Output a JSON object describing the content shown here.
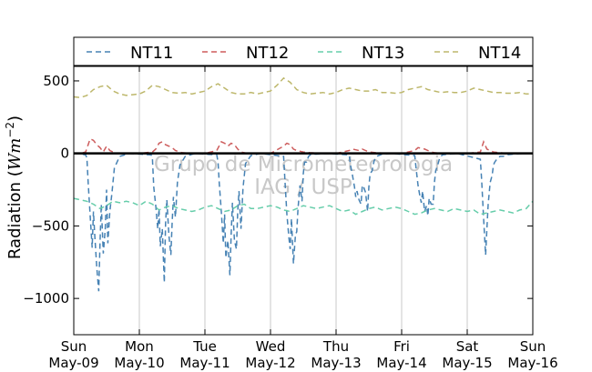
{
  "chart_data": {
    "type": "line",
    "ylabel": "Radiation (Wm⁻²)",
    "ylabel_parts": {
      "prefix": "Radiation (",
      "unit": "Wm",
      "exponent": "−2",
      "suffix": ")"
    },
    "xlabel": "",
    "ylim": [
      -1250,
      600
    ],
    "xlim": [
      0,
      7
    ],
    "y_ticks": [
      500,
      0,
      -500,
      -1000
    ],
    "y_tick_labels": [
      "500",
      "0",
      "−500",
      "−1000"
    ],
    "x_ticks": [
      0,
      1,
      2,
      3,
      4,
      5,
      6,
      7
    ],
    "x_tick_labels": [
      [
        "Sun",
        "May-09"
      ],
      [
        "Mon",
        "May-10"
      ],
      [
        "Tue",
        "May-11"
      ],
      [
        "Wed",
        "May-12"
      ],
      [
        "Thu",
        "May-13"
      ],
      [
        "Fri",
        "May-14"
      ],
      [
        "Sat",
        "May-15"
      ],
      [
        "Sun",
        "May-16"
      ]
    ],
    "grid": "vertical lines at day boundaries",
    "legend_position": "top, outside plot, single row",
    "zero_line": true,
    "watermark": [
      "Grupo de Micrometeorologia",
      "IAG / USP"
    ],
    "series": [
      {
        "name": "NT11",
        "color": "#4682b4",
        "style": "dashed",
        "x": [
          0.0,
          0.08,
          0.18,
          0.2,
          0.22,
          0.25,
          0.28,
          0.3,
          0.32,
          0.35,
          0.38,
          0.4,
          0.42,
          0.45,
          0.48,
          0.5,
          0.52,
          0.55,
          0.58,
          0.62,
          0.7,
          0.85,
          1.18,
          1.2,
          1.22,
          1.25,
          1.28,
          1.3,
          1.32,
          1.35,
          1.38,
          1.4,
          1.42,
          1.45,
          1.48,
          1.5,
          1.52,
          1.55,
          1.58,
          1.62,
          1.7,
          1.85,
          2.18,
          2.2,
          2.22,
          2.25,
          2.28,
          2.3,
          2.32,
          2.35,
          2.38,
          2.4,
          2.42,
          2.45,
          2.48,
          2.5,
          2.52,
          2.55,
          2.58,
          2.62,
          2.7,
          2.85,
          3.2,
          3.22,
          3.25,
          3.28,
          3.3,
          3.32,
          3.35,
          3.38,
          3.4,
          3.42,
          3.45,
          3.48,
          3.5,
          3.52,
          3.55,
          3.58,
          3.62,
          3.7,
          3.85,
          4.2,
          4.22,
          4.25,
          4.28,
          4.3,
          4.32,
          4.35,
          4.38,
          4.4,
          4.42,
          4.45,
          4.48,
          4.5,
          4.52,
          4.55,
          4.58,
          4.62,
          4.7,
          4.85,
          5.2,
          5.22,
          5.25,
          5.28,
          5.3,
          5.32,
          5.35,
          5.38,
          5.4,
          5.42,
          5.45,
          5.48,
          5.5,
          5.52,
          5.55,
          5.58,
          5.62,
          5.7,
          5.85,
          6.2,
          6.22,
          6.25,
          6.28,
          6.3,
          6.32,
          6.35,
          6.38,
          6.4,
          6.42,
          6.45,
          6.48,
          6.5,
          6.55,
          6.6,
          6.7,
          6.85
        ],
        "y": [
          0,
          0,
          -10,
          -30,
          -200,
          -430,
          -650,
          -400,
          -560,
          -780,
          -950,
          -620,
          -350,
          -690,
          -520,
          -250,
          -620,
          -400,
          -280,
          -100,
          -20,
          0,
          -10,
          -40,
          -230,
          -360,
          -520,
          -380,
          -640,
          -520,
          -890,
          -480,
          -320,
          -560,
          -700,
          -480,
          -300,
          -440,
          -200,
          -80,
          -20,
          0,
          -10,
          -60,
          -210,
          -400,
          -620,
          -420,
          -720,
          -600,
          -840,
          -560,
          -340,
          -600,
          -660,
          -400,
          -260,
          -520,
          -240,
          -70,
          -15,
          0,
          -20,
          -180,
          -420,
          -580,
          -660,
          -450,
          -760,
          -560,
          -540,
          -380,
          -220,
          -330,
          -140,
          -60,
          -60,
          -20,
          -5,
          -5,
          0,
          -10,
          -80,
          -150,
          -230,
          -300,
          -260,
          -320,
          -350,
          -220,
          -230,
          -270,
          -400,
          -230,
          -140,
          -120,
          -50,
          -20,
          -5,
          0,
          -15,
          -100,
          -220,
          -300,
          -340,
          -260,
          -400,
          -360,
          -430,
          -310,
          -350,
          -350,
          -200,
          -120,
          -80,
          -30,
          -10,
          -5,
          0,
          -40,
          -180,
          -450,
          -700,
          -520,
          -350,
          -200,
          -150,
          -80,
          -60,
          -40,
          -30,
          -20,
          -20,
          -10,
          -5,
          0
        ]
      },
      {
        "name": "NT12",
        "color": "#cd5c5c",
        "style": "dashed",
        "x": [
          0.0,
          0.1,
          0.18,
          0.25,
          0.3,
          0.35,
          0.4,
          0.45,
          0.5,
          0.55,
          0.65,
          0.8,
          1.0,
          1.2,
          1.25,
          1.3,
          1.35,
          1.4,
          1.45,
          1.5,
          1.55,
          1.65,
          1.8,
          2.0,
          2.18,
          2.25,
          2.3,
          2.35,
          2.4,
          2.45,
          2.5,
          2.55,
          2.65,
          2.8,
          3.0,
          3.2,
          3.25,
          3.3,
          3.35,
          3.4,
          3.5,
          3.6,
          3.8,
          4.0,
          4.2,
          4.25,
          4.3,
          4.35,
          4.4,
          4.45,
          4.5,
          4.6,
          4.8,
          5.0,
          5.2,
          5.25,
          5.3,
          5.35,
          5.4,
          5.45,
          5.5,
          5.6,
          5.8,
          6.0,
          6.2,
          6.25,
          6.3,
          6.35,
          6.4,
          6.5,
          6.6,
          6.8,
          7.0
        ],
        "y": [
          0,
          0,
          10,
          100,
          90,
          60,
          40,
          10,
          50,
          20,
          0,
          0,
          0,
          10,
          30,
          70,
          80,
          60,
          50,
          40,
          20,
          5,
          0,
          0,
          20,
          80,
          70,
          50,
          70,
          60,
          30,
          10,
          0,
          0,
          0,
          50,
          70,
          60,
          30,
          20,
          10,
          5,
          0,
          0,
          20,
          30,
          25,
          20,
          30,
          20,
          10,
          5,
          0,
          0,
          20,
          40,
          35,
          30,
          20,
          10,
          5,
          0,
          0,
          0,
          10,
          80,
          30,
          20,
          10,
          5,
          0,
          0,
          0
        ]
      },
      {
        "name": "NT13",
        "color": "#66cdaa",
        "style": "dashed",
        "x": [
          0.0,
          0.1,
          0.2,
          0.3,
          0.4,
          0.5,
          0.6,
          0.7,
          0.8,
          0.9,
          1.0,
          1.1,
          1.2,
          1.3,
          1.4,
          1.5,
          1.6,
          1.7,
          1.8,
          1.9,
          2.0,
          2.1,
          2.2,
          2.3,
          2.4,
          2.5,
          2.6,
          2.7,
          2.8,
          2.9,
          3.0,
          3.1,
          3.2,
          3.3,
          3.4,
          3.5,
          3.6,
          3.7,
          3.8,
          3.9,
          4.0,
          4.1,
          4.2,
          4.3,
          4.4,
          4.5,
          4.6,
          4.7,
          4.8,
          4.9,
          5.0,
          5.1,
          5.2,
          5.3,
          5.4,
          5.5,
          5.6,
          5.7,
          5.8,
          5.9,
          6.0,
          6.1,
          6.2,
          6.3,
          6.4,
          6.5,
          6.6,
          6.7,
          6.8,
          6.9,
          7.0
        ],
        "y": [
          -310,
          -320,
          -330,
          -350,
          -380,
          -360,
          -330,
          -340,
          -330,
          -340,
          -360,
          -330,
          -350,
          -390,
          -370,
          -360,
          -380,
          -390,
          -400,
          -390,
          -370,
          -360,
          -380,
          -400,
          -390,
          -360,
          -350,
          -380,
          -380,
          -370,
          -360,
          -370,
          -390,
          -400,
          -380,
          -360,
          -370,
          -380,
          -370,
          -360,
          -380,
          -400,
          -390,
          -420,
          -400,
          -380,
          -370,
          -390,
          -380,
          -370,
          -380,
          -400,
          -420,
          -410,
          -390,
          -380,
          -390,
          -400,
          -380,
          -390,
          -400,
          -390,
          -420,
          -410,
          -400,
          -390,
          -400,
          -410,
          -390,
          -380,
          -330
        ]
      },
      {
        "name": "NT14",
        "color": "#bdb76b",
        "style": "dashed",
        "x": [
          0.0,
          0.1,
          0.2,
          0.3,
          0.4,
          0.5,
          0.6,
          0.7,
          0.8,
          0.9,
          1.0,
          1.1,
          1.2,
          1.3,
          1.4,
          1.5,
          1.6,
          1.7,
          1.8,
          1.9,
          2.0,
          2.1,
          2.2,
          2.3,
          2.4,
          2.5,
          2.6,
          2.7,
          2.8,
          2.9,
          3.0,
          3.1,
          3.2,
          3.3,
          3.4,
          3.5,
          3.6,
          3.7,
          3.8,
          3.9,
          4.0,
          4.1,
          4.2,
          4.3,
          4.4,
          4.5,
          4.6,
          4.7,
          4.8,
          4.9,
          5.0,
          5.1,
          5.2,
          5.3,
          5.4,
          5.5,
          5.6,
          5.7,
          5.8,
          5.9,
          6.0,
          6.1,
          6.2,
          6.3,
          6.4,
          6.5,
          6.6,
          6.7,
          6.8,
          6.9,
          7.0
        ],
        "y": [
          390,
          385,
          400,
          440,
          460,
          470,
          430,
          410,
          400,
          405,
          410,
          430,
          470,
          460,
          440,
          420,
          415,
          420,
          410,
          420,
          430,
          460,
          480,
          450,
          420,
          410,
          410,
          420,
          410,
          420,
          430,
          470,
          520,
          490,
          440,
          420,
          410,
          415,
          420,
          410,
          420,
          440,
          450,
          440,
          430,
          430,
          440,
          420,
          420,
          415,
          420,
          440,
          450,
          460,
          440,
          430,
          420,
          425,
          420,
          420,
          430,
          450,
          440,
          430,
          420,
          420,
          415,
          415,
          420,
          410,
          410
        ]
      }
    ]
  }
}
